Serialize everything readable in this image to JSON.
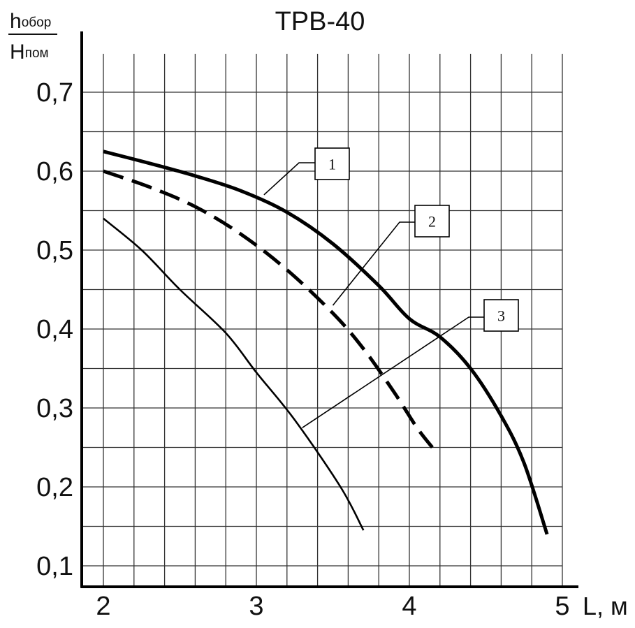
{
  "chart_data": {
    "type": "line",
    "title": "ТРВ-40",
    "xlabel": "L, м",
    "ylabel": {
      "numerator_main": "h",
      "numerator_sub": "обор",
      "denominator_main": "H",
      "denominator_sub": "пом"
    },
    "xlim": [
      2,
      5
    ],
    "ylim": [
      0.1,
      0.7
    ],
    "x_ticks": [
      "2",
      "3",
      "4",
      "5"
    ],
    "y_ticks": [
      "0,1",
      "0,2",
      "0,3",
      "0,4",
      "0,5",
      "0,6",
      "0,7"
    ],
    "grid": true,
    "series": [
      {
        "name": "1",
        "style": "thick-solid",
        "color": "#000000",
        "x": [
          2.0,
          2.3,
          2.6,
          2.9,
          3.2,
          3.5,
          3.8,
          4.0,
          4.2,
          4.4,
          4.6,
          4.75,
          4.9
        ],
        "y": [
          0.625,
          0.61,
          0.594,
          0.575,
          0.548,
          0.508,
          0.455,
          0.413,
          0.39,
          0.35,
          0.29,
          0.23,
          0.14
        ]
      },
      {
        "name": "2",
        "style": "thick-dashed",
        "color": "#000000",
        "x": [
          2.0,
          2.3,
          2.6,
          2.9,
          3.2,
          3.5,
          3.7,
          3.9,
          4.05,
          4.15
        ],
        "y": [
          0.6,
          0.58,
          0.555,
          0.52,
          0.475,
          0.42,
          0.375,
          0.32,
          0.275,
          0.25
        ]
      },
      {
        "name": "3",
        "style": "thin-solid",
        "color": "#000000",
        "x": [
          2.0,
          2.25,
          2.5,
          2.8,
          3.0,
          3.25,
          3.55,
          3.7
        ],
        "y": [
          0.54,
          0.5,
          0.45,
          0.395,
          0.345,
          0.285,
          0.2,
          0.145
        ]
      }
    ],
    "callouts": [
      {
        "label": "1",
        "series": "1",
        "anchor": [
          3.05,
          0.57
        ]
      },
      {
        "label": "2",
        "series": "2",
        "anchor": [
          3.5,
          0.43
        ]
      },
      {
        "label": "3",
        "series": "3",
        "anchor": [
          3.3,
          0.275
        ]
      }
    ]
  }
}
